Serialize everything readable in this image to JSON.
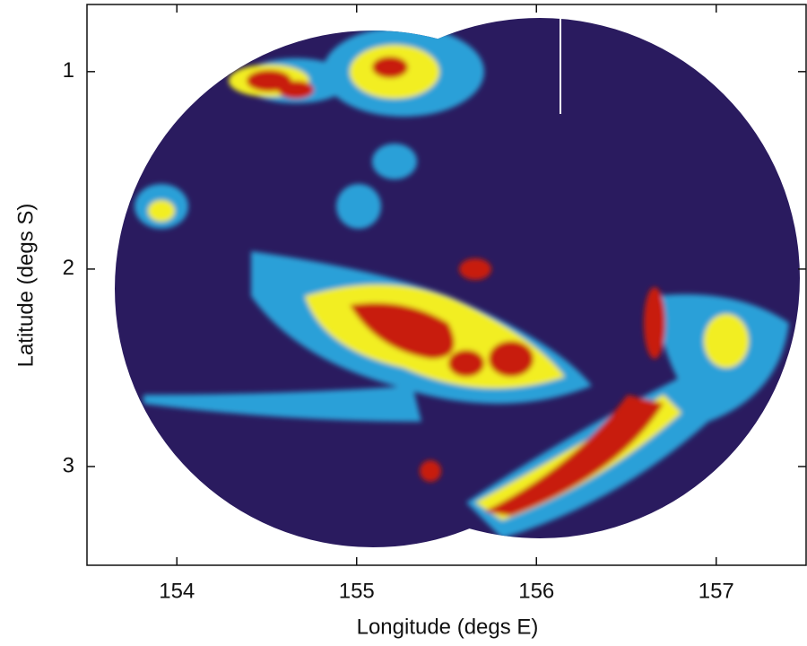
{
  "chart_data": {
    "type": "radar-map",
    "x_label": "Longitude (degs E)",
    "y_label": "Latitude (degs S)",
    "xlim": [
      153.5,
      157.5
    ],
    "xticks": [
      154,
      155,
      156,
      157
    ],
    "ylim": [
      0.66,
      3.5
    ],
    "yticks": [
      1,
      2,
      3
    ],
    "y_inverted": true
  }
}
